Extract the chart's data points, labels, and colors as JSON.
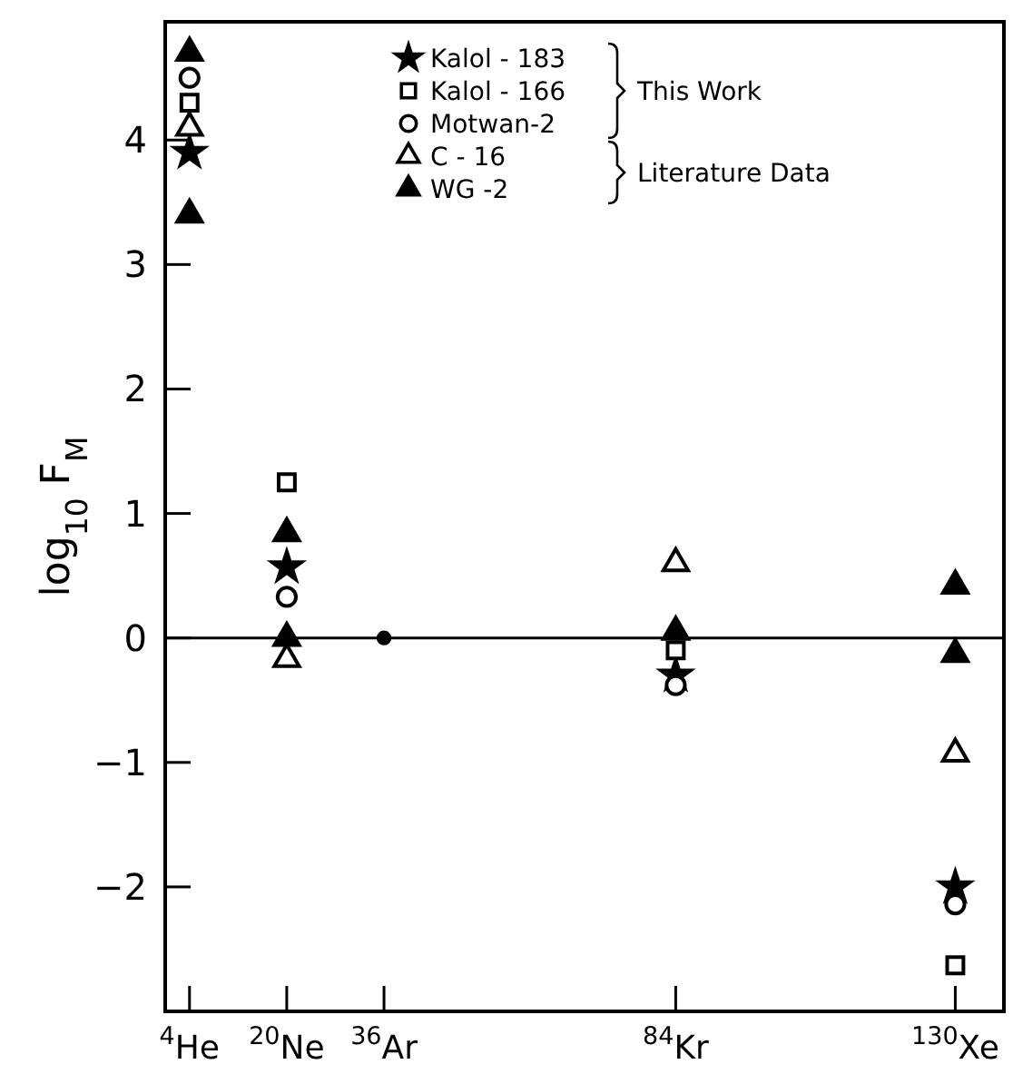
{
  "chart_data": {
    "type": "scatter",
    "ylabel": "log$_{10}$ F$_{M}$",
    "xlim": [
      0,
      138
    ],
    "xticks": [
      {
        "value": 4,
        "label": "$^{4}$He"
      },
      {
        "value": 20,
        "label": "$^{20}$Ne"
      },
      {
        "value": 36,
        "label": "$^{36}$Ar"
      },
      {
        "value": 84,
        "label": "$^{84}$Kr"
      },
      {
        "value": 130,
        "label": "$^{130}$Xe"
      }
    ],
    "ylim": [
      -3,
      4.95
    ],
    "yticks": [
      -2,
      -1,
      0,
      1,
      2,
      3,
      4
    ],
    "x": [
      4,
      20,
      84,
      130
    ],
    "series": [
      {
        "name": "Kalol - 183",
        "color": "#000000",
        "marker": "star",
        "values": [
          3.9,
          0.57,
          -0.3,
          -2.0
        ]
      },
      {
        "name": "Kalol - 166",
        "color": "#000000",
        "marker": "square",
        "values": [
          4.3,
          1.25,
          -0.1,
          -2.63
        ]
      },
      {
        "name": "Motwan-2",
        "color": "#000000",
        "marker": "circle",
        "values": [
          4.5,
          0.33,
          -0.38,
          -2.14
        ]
      },
      {
        "name": "C - 16",
        "color": "#000000",
        "marker": "triangle",
        "values": [
          4.1,
          -0.17,
          0.6,
          -0.93
        ]
      },
      {
        "name": "WG -2",
        "color": "#000000",
        "marker": "triangle",
        "x": [
          4,
          4,
          20,
          20,
          84,
          130,
          130
        ],
        "values": [
          4.7,
          3.4,
          0.84,
          0,
          0.05,
          0.42,
          -0.13
        ]
      },
      {
        "color": "#000000",
        "marker": "circle",
        "x": [
          36
        ],
        "values": [
          0
        ]
      }
    ],
    "ref_lines": [
      {
        "axis": "y",
        "value": 0,
        "color": "#000000"
      }
    ],
    "annotations": [
      "This Work",
      "Literature Data"
    ],
    "legend": "top",
    "grid": false
  }
}
